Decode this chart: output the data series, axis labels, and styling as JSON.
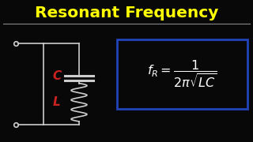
{
  "title": "Resonant Frequency",
  "title_color": "#FFFF00",
  "bg_color": "#080808",
  "separator_color": "#888888",
  "formula_color": "#FFFFFF",
  "box_color": "#2244BB",
  "circuit_color": "#CCCCCC",
  "C_label_color": "#CC2222",
  "L_label_color": "#CC2222",
  "fig_width": 3.2,
  "fig_height": 1.8,
  "dpi": 100,
  "title_fontsize": 14.5,
  "formula_fontsize": 11.5
}
